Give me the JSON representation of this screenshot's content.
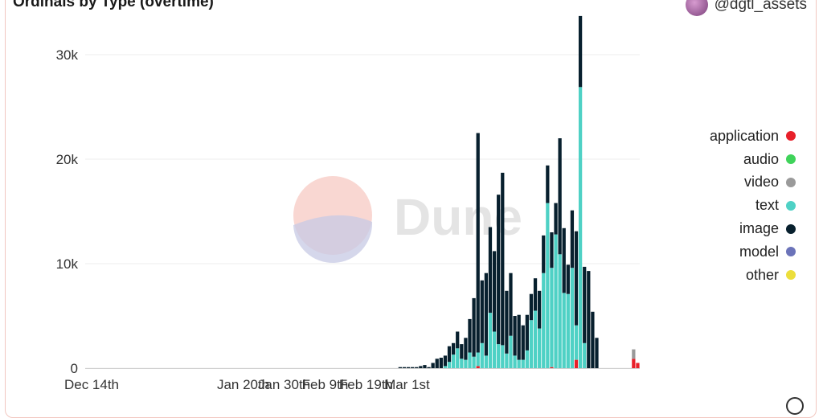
{
  "title": "Ordinals by Type (overtime)",
  "author": "@dgtl_assets",
  "watermark": "Dune",
  "chart_data": {
    "type": "bar",
    "stacked": true,
    "title": "Ordinals by Type (overtime)",
    "xlabel": "",
    "ylabel": "",
    "ylim": [
      0,
      32000
    ],
    "yticks": [
      0,
      10000,
      20000,
      30000
    ],
    "ytick_labels": [
      "0",
      "10k",
      "20k",
      "30k"
    ],
    "grid": true,
    "legend_position": "right",
    "x_start": "2022-12-14",
    "xticks": [
      {
        "date": "2022-12-14",
        "label": "Dec 14th"
      },
      {
        "date": "2023-01-20",
        "label": "Jan 20th"
      },
      {
        "date": "2023-01-30",
        "label": "Jan 30th"
      },
      {
        "date": "2023-02-09",
        "label": "Feb 9th"
      },
      {
        "date": "2023-02-19",
        "label": "Feb 19th"
      },
      {
        "date": "2023-03-01",
        "label": "Mar 1st"
      }
    ],
    "series": [
      {
        "name": "application",
        "color": "#e8202a",
        "values": [
          0,
          0,
          0,
          0,
          0,
          0,
          0,
          0,
          0,
          0,
          0,
          0,
          0,
          0,
          0,
          0,
          0,
          0,
          0,
          0,
          0,
          0,
          0,
          0,
          0,
          0,
          0,
          0,
          0,
          0,
          0,
          0,
          0,
          0,
          0,
          0,
          0,
          0,
          0,
          0,
          0,
          0,
          0,
          0,
          0,
          0,
          0,
          0,
          0,
          0,
          0,
          0,
          0,
          0,
          0,
          0,
          0,
          0,
          0,
          0,
          0,
          0,
          0,
          0,
          0,
          0,
          0,
          0,
          0,
          0,
          0,
          0,
          0,
          0,
          0,
          0,
          0,
          0,
          0,
          0,
          0,
          0,
          0,
          0,
          0,
          0,
          0,
          0,
          0,
          0,
          0,
          0,
          0,
          0,
          0,
          200,
          0,
          0,
          0,
          0,
          0,
          0,
          0,
          0,
          0,
          0,
          0,
          0,
          0,
          0,
          0,
          0,
          0,
          100,
          0,
          0,
          0,
          0,
          0,
          800,
          0,
          0,
          0,
          0,
          0,
          0,
          0,
          0,
          0,
          0,
          0,
          0,
          0,
          900,
          500
        ]
      },
      {
        "name": "audio",
        "color": "#3fd35a",
        "values": [
          0,
          0,
          0,
          0,
          0,
          0,
          0,
          0,
          0,
          0,
          0,
          0,
          0,
          0,
          0,
          0,
          0,
          0,
          0,
          0,
          0,
          0,
          0,
          0,
          0,
          0,
          0,
          0,
          0,
          0,
          0,
          0,
          0,
          0,
          0,
          0,
          0,
          0,
          0,
          0,
          0,
          0,
          0,
          0,
          0,
          0,
          0,
          0,
          0,
          0,
          0,
          0,
          0,
          0,
          0,
          0,
          0,
          0,
          0,
          0,
          0,
          0,
          0,
          0,
          0,
          0,
          0,
          0,
          0,
          0,
          0,
          0,
          0,
          0,
          0,
          0,
          0,
          0,
          0,
          0,
          0,
          0,
          0,
          0,
          0,
          0,
          0,
          0,
          0,
          0,
          0,
          0,
          0,
          0,
          0,
          0,
          0,
          0,
          0,
          0,
          0,
          0,
          0,
          0,
          0,
          0,
          0,
          0,
          0,
          0,
          0,
          0,
          0,
          0,
          0,
          0,
          0,
          0,
          0,
          0,
          0,
          0,
          0,
          0,
          0,
          0,
          0,
          0,
          0,
          0,
          0,
          0,
          0,
          0,
          0
        ]
      },
      {
        "name": "video",
        "color": "#9a9a9a",
        "values": [
          0,
          0,
          0,
          0,
          0,
          0,
          0,
          0,
          0,
          0,
          0,
          0,
          0,
          0,
          0,
          0,
          0,
          0,
          0,
          0,
          0,
          0,
          0,
          0,
          0,
          0,
          0,
          0,
          0,
          0,
          0,
          0,
          0,
          0,
          0,
          0,
          0,
          0,
          0,
          0,
          0,
          0,
          0,
          0,
          0,
          0,
          0,
          0,
          0,
          0,
          0,
          0,
          0,
          0,
          0,
          0,
          0,
          0,
          0,
          0,
          0,
          0,
          0,
          0,
          0,
          0,
          0,
          0,
          0,
          0,
          0,
          0,
          0,
          0,
          0,
          0,
          0,
          0,
          0,
          0,
          0,
          0,
          0,
          0,
          0,
          0,
          0,
          0,
          0,
          0,
          0,
          0,
          0,
          0,
          0,
          0,
          0,
          0,
          0,
          0,
          0,
          0,
          0,
          0,
          0,
          0,
          0,
          0,
          0,
          0,
          0,
          0,
          0,
          0,
          0,
          0,
          0,
          0,
          0,
          0,
          0,
          0,
          0,
          0,
          0,
          0,
          0,
          0,
          0,
          0,
          0,
          0,
          0,
          900,
          0
        ]
      },
      {
        "name": "text",
        "color": "#4fd1c5",
        "values": [
          0,
          0,
          0,
          0,
          0,
          0,
          0,
          0,
          0,
          0,
          0,
          0,
          0,
          0,
          0,
          0,
          0,
          0,
          0,
          0,
          0,
          0,
          0,
          0,
          0,
          0,
          0,
          0,
          0,
          0,
          0,
          0,
          0,
          0,
          0,
          0,
          0,
          0,
          0,
          0,
          0,
          0,
          0,
          0,
          0,
          0,
          0,
          0,
          0,
          0,
          0,
          0,
          0,
          0,
          0,
          0,
          0,
          0,
          0,
          0,
          0,
          0,
          0,
          0,
          0,
          0,
          0,
          0,
          0,
          0,
          0,
          0,
          0,
          0,
          0,
          0,
          0,
          0,
          0,
          0,
          0,
          0,
          0,
          0,
          0,
          0,
          0,
          200,
          600,
          1300,
          1900,
          900,
          800,
          1500,
          1100,
          1300,
          2400,
          1200,
          5300,
          3500,
          2300,
          2200,
          1400,
          3100,
          1200,
          800,
          800,
          1700,
          4600,
          5500,
          3800,
          9100,
          15800,
          9500,
          12800,
          10900,
          7200,
          7100,
          9600,
          3300,
          26900,
          2400
        ]
      },
      {
        "name": "image",
        "color": "#08202e",
        "values": [
          0,
          0,
          0,
          0,
          0,
          0,
          0,
          0,
          0,
          0,
          0,
          0,
          0,
          0,
          0,
          0,
          0,
          0,
          0,
          0,
          0,
          0,
          0,
          0,
          0,
          0,
          0,
          0,
          0,
          0,
          0,
          0,
          0,
          0,
          0,
          0,
          0,
          0,
          0,
          0,
          0,
          0,
          0,
          0,
          0,
          0,
          0,
          0,
          0,
          0,
          0,
          0,
          0,
          0,
          0,
          0,
          0,
          0,
          0,
          0,
          0,
          0,
          0,
          0,
          0,
          0,
          0,
          0,
          0,
          0,
          0,
          0,
          0,
          0,
          0,
          0,
          100,
          100,
          100,
          100,
          100,
          200,
          300,
          100,
          500,
          900,
          1000,
          1000,
          1500,
          1100,
          1600,
          1400,
          2100,
          3200,
          5600,
          21000,
          6000,
          7900,
          8200,
          7700,
          14300,
          16500,
          6000,
          6000,
          3800,
          4300,
          3300,
          3400,
          2500,
          3100,
          3600,
          3600,
          3600,
          3400,
          3000,
          11100,
          6200,
          2800,
          5500,
          9000,
          6800,
          7300,
          9300,
          5400,
          2900
        ]
      },
      {
        "name": "model",
        "color": "#6b73b9",
        "values": []
      },
      {
        "name": "other",
        "color": "#ecde3b",
        "values": []
      }
    ]
  }
}
